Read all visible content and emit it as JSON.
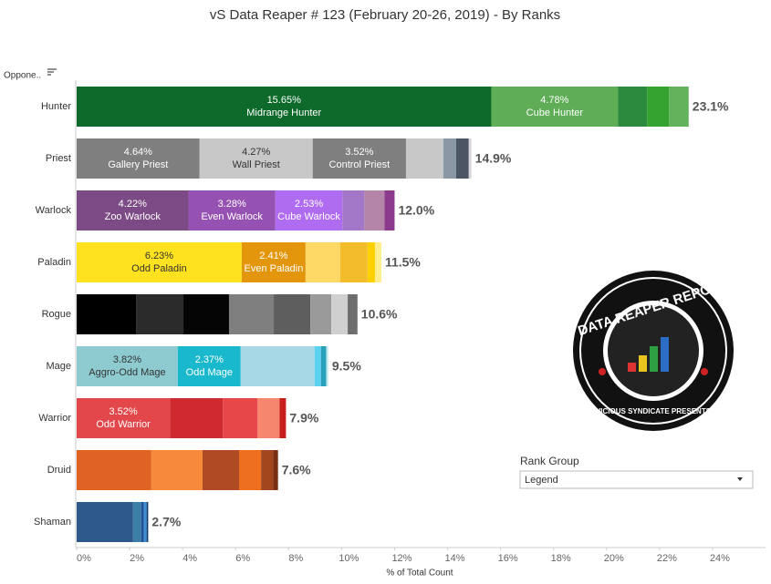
{
  "chart_data": {
    "type": "stacked_bar_horizontal",
    "title": "vS Data Reaper #  123 (February 20-26, 2019) - By Ranks",
    "column_header": "Oppone..",
    "x_label": "% of Total Count",
    "xlim": [
      0,
      26
    ],
    "xticks": [
      {
        "value": 0,
        "label": "0%"
      },
      {
        "value": 2,
        "label": "2%"
      },
      {
        "value": 4,
        "label": "4%"
      },
      {
        "value": 6,
        "label": "6%"
      },
      {
        "value": 8,
        "label": "8%"
      },
      {
        "value": 10,
        "label": "10%"
      },
      {
        "value": 12,
        "label": "12%"
      },
      {
        "value": 14,
        "label": "14%"
      },
      {
        "value": 16,
        "label": "16%"
      },
      {
        "value": 18,
        "label": "18%"
      },
      {
        "value": 20,
        "label": "20%"
      },
      {
        "value": 22,
        "label": "22%"
      },
      {
        "value": 24,
        "label": "24%"
      }
    ],
    "legend_title": "Rank Group",
    "legend_dropdown": "Legend",
    "bars": [
      {
        "category": "Hunter",
        "total": 23.1,
        "total_label": "23.1%",
        "segments": [
          {
            "value": 15.65,
            "label": "15.65%",
            "name": "Midrange Hunter",
            "color": "#0e6a2b"
          },
          {
            "value": 4.78,
            "label": "4.78%",
            "name": "Cube Hunter",
            "color": "#5fad57"
          },
          {
            "value": 1.1,
            "color": "#2b8a3e"
          },
          {
            "value": 0.83,
            "color": "#34a32f"
          },
          {
            "value": 0.74,
            "color": "#62b35c"
          }
        ]
      },
      {
        "category": "Priest",
        "total": 14.9,
        "total_label": "14.9%",
        "segments": [
          {
            "value": 4.64,
            "label": "4.64%",
            "name": "Gallery Priest",
            "color": "#7f7f7f"
          },
          {
            "value": 4.27,
            "label": "4.27%",
            "name": "Wall Priest",
            "color": "#c8c8c8"
          },
          {
            "value": 3.52,
            "label": "3.52%",
            "name": "Control Priest",
            "color": "#7f7f7f"
          },
          {
            "value": 1.41,
            "color": "#c8c8c8"
          },
          {
            "value": 0.48,
            "color": "#8a98a6"
          },
          {
            "value": 0.48,
            "color": "#4b5563"
          },
          {
            "value": 0.1,
            "color": "#d8d8d8"
          }
        ]
      },
      {
        "category": "Warlock",
        "total": 12.0,
        "total_label": "12.0%",
        "segments": [
          {
            "value": 4.22,
            "label": "4.22%",
            "name": "Zoo Warlock",
            "color": "#7c4a84"
          },
          {
            "value": 3.28,
            "label": "3.28%",
            "name": "Even Warlock",
            "color": "#9552b3"
          },
          {
            "value": 2.53,
            "label": "2.53%",
            "name": "Cube Warlock",
            "color": "#b06cf0"
          },
          {
            "value": 0.83,
            "color": "#a277c8"
          },
          {
            "value": 0.76,
            "color": "#b585a9"
          },
          {
            "value": 0.38,
            "color": "#8b3a8c"
          }
        ]
      },
      {
        "category": "Paladin",
        "total": 11.5,
        "total_label": "11.5%",
        "segments": [
          {
            "value": 6.23,
            "label": "6.23%",
            "name": "Odd Paladin",
            "color": "#ffe21f"
          },
          {
            "value": 2.41,
            "label": "2.41%",
            "name": "Even Paladin",
            "color": "#e3960c"
          },
          {
            "value": 1.31,
            "color": "#ffd966"
          },
          {
            "value": 1.03,
            "color": "#f2bc2c"
          },
          {
            "value": 0.28,
            "color": "#ffd000"
          },
          {
            "value": 0.24,
            "color": "#ffec8a"
          }
        ]
      },
      {
        "category": "Rogue",
        "total": 10.6,
        "total_label": "10.6%",
        "segments": [
          {
            "value": 2.24,
            "color": "#000000"
          },
          {
            "value": 1.79,
            "color": "#2b2b2b"
          },
          {
            "value": 1.72,
            "color": "#050505"
          },
          {
            "value": 1.69,
            "color": "#7f7f7f"
          },
          {
            "value": 1.38,
            "color": "#5e5e5e"
          },
          {
            "value": 0.79,
            "color": "#9a9a9a"
          },
          {
            "value": 0.62,
            "color": "#d0d0d0"
          },
          {
            "value": 0.37,
            "color": "#6e6e6e"
          }
        ]
      },
      {
        "category": "Mage",
        "total": 9.5,
        "total_label": "9.5%",
        "segments": [
          {
            "value": 3.82,
            "label": "3.82%",
            "name": "Aggro-Odd Mage",
            "color": "#8ecbd1"
          },
          {
            "value": 2.37,
            "label": "2.37%",
            "name": "Odd Mage",
            "color": "#19b8cc"
          },
          {
            "value": 2.79,
            "color": "#a6d9e5"
          },
          {
            "value": 0.24,
            "color": "#5bd2f0"
          },
          {
            "value": 0.2,
            "color": "#2a9fb8"
          },
          {
            "value": 0.08,
            "color": "#c7eaf0"
          }
        ]
      },
      {
        "category": "Warrior",
        "total": 7.9,
        "total_label": "7.9%",
        "segments": [
          {
            "value": 3.52,
            "label": "3.52%",
            "name": "Odd Warrior",
            "color": "#e2474b"
          },
          {
            "value": 2.0,
            "color": "#cf2a2f"
          },
          {
            "value": 1.31,
            "color": "#e8474a"
          },
          {
            "value": 0.83,
            "color": "#f7866f"
          },
          {
            "value": 0.24,
            "color": "#c81e1e"
          }
        ]
      },
      {
        "category": "Druid",
        "total": 7.6,
        "total_label": "7.6%",
        "segments": [
          {
            "value": 2.82,
            "color": "#df6423"
          },
          {
            "value": 1.93,
            "color": "#f7893a"
          },
          {
            "value": 1.38,
            "color": "#b04a24"
          },
          {
            "value": 0.83,
            "color": "#ef6f20"
          },
          {
            "value": 0.45,
            "color": "#a3461e"
          },
          {
            "value": 0.19,
            "color": "#7a3010"
          }
        ]
      },
      {
        "category": "Shaman",
        "total": 2.7,
        "total_label": "2.7%",
        "segments": [
          {
            "value": 2.13,
            "color": "#2d5a8a"
          },
          {
            "value": 0.31,
            "color": "#3b7fa8"
          },
          {
            "value": 0.1,
            "color": "#1f4f9a"
          },
          {
            "value": 0.1,
            "color": "#3d8ed0"
          },
          {
            "value": 0.06,
            "color": "#123a6b"
          }
        ]
      }
    ]
  },
  "logo": {
    "title": "DATA REAPER REPORT",
    "subtitle": "VICIOUS SYNDICATE PRESENTS"
  }
}
